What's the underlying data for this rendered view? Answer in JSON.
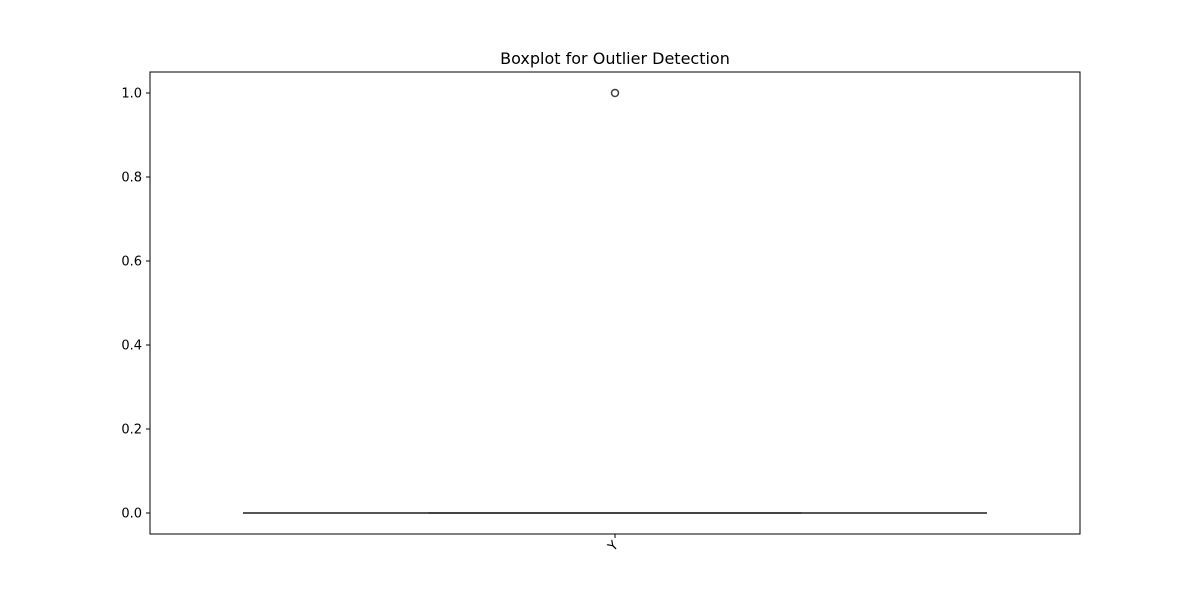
{
  "chart_data": {
    "type": "box",
    "title": "Boxplot for Outlier Detection",
    "xlabel": "",
    "ylabel": "",
    "categories": [
      "Y"
    ],
    "boxes": [
      {
        "category": "Y",
        "whisker_low": 0.0,
        "q1": 0.0,
        "median": 0.0,
        "q3": 0.0,
        "whisker_high": 0.0,
        "outliers": [
          1.0
        ]
      }
    ],
    "ylim": [
      -0.05,
      1.05
    ],
    "yticks": [
      0.0,
      0.2,
      0.4,
      0.6,
      0.8,
      1.0
    ],
    "ytick_labels": [
      "0.0",
      "0.2",
      "0.4",
      "0.6",
      "0.8",
      "1.0"
    ],
    "xtick_rotation": "rotated",
    "grid": false,
    "legend": "none",
    "colors": {
      "box_edge": "#3f3f3f",
      "outlier_edge": "#3f3f3f",
      "axes": "#000000"
    }
  }
}
